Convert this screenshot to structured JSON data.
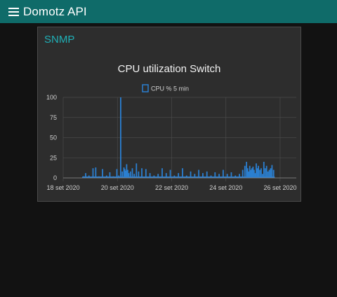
{
  "header": {
    "title": "Domotz API",
    "menu_icon": "hamburger-menu-icon",
    "background": "#0f6b69"
  },
  "card": {
    "title": "SNMP",
    "title_color": "#1fb0b7"
  },
  "chart_data": {
    "type": "bar",
    "title": "CPU utilization Switch",
    "xlabel": "",
    "ylabel": "",
    "ylim": [
      0,
      100
    ],
    "yticks": [
      0,
      25,
      50,
      75,
      100
    ],
    "xlim": [
      "2020-09-18",
      "2020-09-26"
    ],
    "xticks": [
      "18 set 2020",
      "20 set 2020",
      "22 set 2020",
      "24 set 2020",
      "26 set 2020"
    ],
    "grid": true,
    "legend": {
      "position": "top",
      "entries": [
        "CPU % 5 min"
      ]
    },
    "series": [
      {
        "name": "CPU % 5 min",
        "color": "#2b7fd0",
        "x_days": [
          18.75,
          18.83,
          18.95,
          19.1,
          19.2,
          19.32,
          19.45,
          19.6,
          19.72,
          19.85,
          19.98,
          20.05,
          20.12,
          20.18,
          20.24,
          20.27,
          20.3,
          20.34,
          20.38,
          20.42,
          20.48,
          20.55,
          20.62,
          20.7,
          20.78,
          20.9,
          21.05,
          21.2,
          21.35,
          21.5,
          21.65,
          21.8,
          21.95,
          22.1,
          22.25,
          22.4,
          22.55,
          22.7,
          22.85,
          23.0,
          23.15,
          23.3,
          23.45,
          23.6,
          23.75,
          23.9,
          24.05,
          24.2,
          24.35,
          24.5,
          24.62,
          24.7,
          24.76,
          24.8,
          24.84,
          24.88,
          24.92,
          24.96,
          25.0,
          25.04,
          25.08,
          25.12,
          25.16,
          25.2,
          25.25,
          25.3,
          25.35,
          25.4,
          25.45,
          25.5,
          25.55,
          25.6,
          25.65,
          25.7,
          25.76
        ],
        "values": [
          2,
          6,
          3,
          12,
          13,
          2,
          11,
          3,
          7,
          2,
          11,
          3,
          100,
          8,
          13,
          11,
          9,
          17,
          10,
          6,
          8,
          12,
          5,
          18,
          8,
          12,
          11,
          6,
          3,
          5,
          12,
          6,
          10,
          3,
          6,
          12,
          3,
          8,
          5,
          10,
          6,
          8,
          3,
          7,
          5,
          10,
          5,
          7,
          3,
          5,
          10,
          15,
          20,
          12,
          8,
          15,
          10,
          12,
          14,
          10,
          6,
          18,
          12,
          15,
          10,
          12,
          5,
          20,
          12,
          15,
          8,
          10,
          12,
          16,
          10
        ]
      }
    ]
  }
}
